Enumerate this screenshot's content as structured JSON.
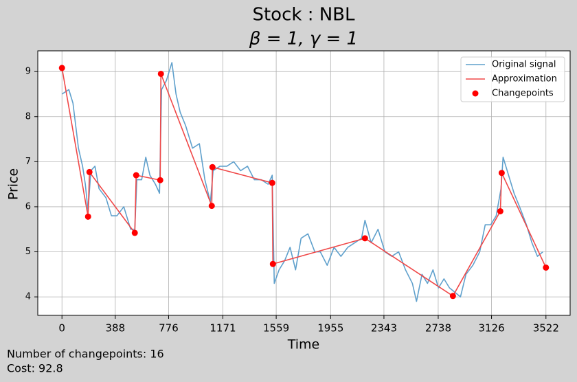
{
  "chart_data": {
    "type": "line",
    "title": "Stock : NBL",
    "subtitle": "β = 1, γ = 1",
    "x_label": "Time",
    "y_label": "Price",
    "xlim": [
      -176,
      3698
    ],
    "ylim": [
      3.59,
      9.46
    ],
    "xticks": [
      0,
      388,
      776,
      1171,
      1559,
      1955,
      2343,
      2738,
      3126,
      3522
    ],
    "yticks": [
      4,
      5,
      6,
      7,
      8,
      9
    ],
    "grid": true,
    "legend": "upper right",
    "annotations": [
      "Number of changepoints: 16",
      "Cost: 92.8"
    ],
    "series": [
      {
        "name": "Original signal",
        "type": "line",
        "color": "#5fa0cc",
        "x": [
          0,
          50,
          80,
          120,
          150,
          170,
          190,
          210,
          240,
          270,
          320,
          360,
          400,
          450,
          500,
          530,
          545,
          580,
          610,
          640,
          680,
          710,
          725,
          760,
          800,
          830,
          860,
          900,
          950,
          1000,
          1040,
          1080,
          1100,
          1150,
          1200,
          1250,
          1300,
          1350,
          1400,
          1450,
          1500,
          1530,
          1545,
          1580,
          1620,
          1660,
          1700,
          1740,
          1790,
          1840,
          1880,
          1930,
          1980,
          2030,
          2080,
          2130,
          2180,
          2205,
          2250,
          2300,
          2350,
          2400,
          2450,
          2500,
          2550,
          2580,
          2620,
          2660,
          2700,
          2740,
          2780,
          2820,
          2860,
          2900,
          2940,
          2990,
          3040,
          3080,
          3120,
          3160,
          3195,
          3210,
          3250,
          3290,
          3330,
          3380,
          3420,
          3460,
          3500
        ],
        "values": [
          8.5,
          8.6,
          8.3,
          7.3,
          6.9,
          6.5,
          5.9,
          6.8,
          6.9,
          6.4,
          6.2,
          5.8,
          5.8,
          6.0,
          5.5,
          5.5,
          6.6,
          6.6,
          7.1,
          6.7,
          6.5,
          6.3,
          8.6,
          8.8,
          9.2,
          8.5,
          8.1,
          7.8,
          7.3,
          7.4,
          6.6,
          6.1,
          6.8,
          6.9,
          6.9,
          7.0,
          6.8,
          6.9,
          6.6,
          6.6,
          6.5,
          6.7,
          4.3,
          4.6,
          4.8,
          5.1,
          4.6,
          5.3,
          5.4,
          5.0,
          5.0,
          4.7,
          5.1,
          4.9,
          5.1,
          5.2,
          5.3,
          5.7,
          5.2,
          5.5,
          5.0,
          4.9,
          5.0,
          4.6,
          4.3,
          3.9,
          4.5,
          4.3,
          4.6,
          4.2,
          4.4,
          4.2,
          4.1,
          4.0,
          4.5,
          4.7,
          5.0,
          5.6,
          5.6,
          5.8,
          6.4,
          7.1,
          6.7,
          6.3,
          6.0,
          5.6,
          5.2,
          4.9,
          5.0
        ]
      },
      {
        "name": "Approximation",
        "type": "line",
        "color": "#f04848",
        "x": [
          0,
          190,
          200,
          530,
          540,
          715,
          720,
          1090,
          1095,
          1530,
          1535,
          2205,
          2845,
          3190,
          3200,
          3522
        ],
        "values": [
          9.08,
          5.78,
          6.77,
          5.42,
          6.7,
          6.59,
          8.95,
          6.02,
          6.88,
          6.53,
          4.73,
          5.3,
          4.02,
          5.9,
          6.75,
          4.65
        ]
      },
      {
        "name": "Changepoints",
        "type": "scatter",
        "color": "#ff0000",
        "x": [
          0,
          190,
          200,
          530,
          540,
          715,
          720,
          1090,
          1095,
          1530,
          1535,
          2205,
          2845,
          3190,
          3200,
          3522
        ],
        "values": [
          9.08,
          5.78,
          6.77,
          5.42,
          6.7,
          6.59,
          8.95,
          6.02,
          6.88,
          6.53,
          4.73,
          5.3,
          4.02,
          5.9,
          6.75,
          4.65
        ]
      }
    ]
  }
}
